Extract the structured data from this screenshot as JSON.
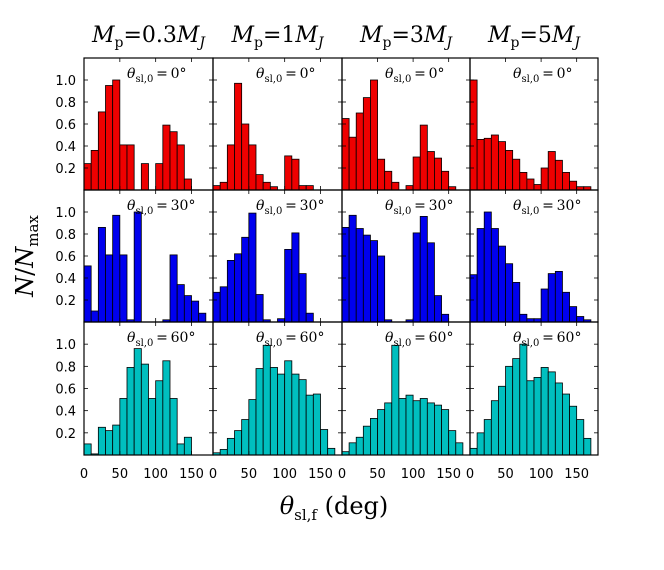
{
  "columns": [
    {
      "label": "0.3"
    },
    {
      "label": "1"
    },
    {
      "label": "3"
    },
    {
      "label": "5"
    }
  ],
  "rows": [
    {
      "theta0": "0",
      "color": "#ee0000"
    },
    {
      "theta0": "30",
      "color": "#0000ee"
    },
    {
      "theta0": "60",
      "color": "#00bfbf"
    }
  ],
  "ylabel": "N/N_max",
  "xlabel": "θ_sl,f (deg)",
  "chart_data": {
    "type": "bar",
    "layout": "3x4 grid of histograms (rows: initial θ_sl,0; columns: planet mass M_p)",
    "bin_width_deg": 10,
    "x_bin_centers": [
      5,
      15,
      25,
      35,
      45,
      55,
      65,
      75,
      85,
      95,
      105,
      115,
      125,
      135,
      145,
      155,
      165,
      175
    ],
    "xlim": [
      0,
      180
    ],
    "ylim": [
      0,
      1.2
    ],
    "x_ticks": [
      0,
      50,
      100,
      150
    ],
    "y_ticks": [
      0.2,
      0.4,
      0.6,
      0.8,
      1.0
    ],
    "panels": [
      [
        {
          "values": [
            0.24,
            0.36,
            0.71,
            0.95,
            1.0,
            0.41,
            0.41,
            0,
            0.24,
            0,
            0.24,
            0.59,
            0.53,
            0.41,
            0.1,
            0,
            0,
            0
          ]
        },
        {
          "values": [
            0.04,
            0.07,
            0.41,
            0.97,
            0.6,
            0.41,
            0.14,
            0.07,
            0.03,
            0,
            0.31,
            0.28,
            0.04,
            0.04,
            0,
            0,
            0,
            0
          ]
        },
        {
          "values": [
            0.65,
            0.48,
            0.7,
            0.84,
            1.0,
            0.28,
            0.17,
            0.07,
            0,
            0.04,
            0.3,
            0.59,
            0.35,
            0.29,
            0.17,
            0.03,
            0,
            0
          ]
        },
        {
          "values": [
            1.0,
            0.46,
            0.47,
            0.5,
            0.44,
            0.36,
            0.28,
            0.16,
            0.1,
            0.05,
            0.2,
            0.35,
            0.27,
            0.16,
            0.08,
            0.03,
            0.03,
            0
          ]
        }
      ],
      [
        {
          "values": [
            0.51,
            0.1,
            0.86,
            0.61,
            0.97,
            0.61,
            0.02,
            1.0,
            0,
            0,
            0,
            0.02,
            0.61,
            0.34,
            0.24,
            0.19,
            0.08,
            0
          ]
        },
        {
          "values": [
            0.27,
            0.32,
            0.56,
            0.62,
            0.77,
            0.99,
            0.25,
            0.02,
            0,
            0.03,
            0.66,
            0.81,
            0.44,
            0.08,
            0,
            0,
            0,
            0
          ]
        },
        {
          "values": [
            0.86,
            0.97,
            0.85,
            0.79,
            0.74,
            0.6,
            0.02,
            0,
            0,
            0.02,
            0.81,
            0.96,
            0.72,
            0.24,
            0.07,
            0,
            0,
            0
          ]
        },
        {
          "values": [
            0.43,
            0.85,
            1.0,
            0.85,
            0.69,
            0.53,
            0.36,
            0.07,
            0.03,
            0.03,
            0.3,
            0.44,
            0.46,
            0.27,
            0.14,
            0.05,
            0.02,
            0
          ]
        }
      ],
      [
        {
          "values": [
            0.1,
            0.01,
            0.25,
            0.22,
            0.27,
            0.51,
            0.79,
            0.96,
            0.82,
            0.51,
            0.67,
            0.85,
            0.51,
            0.1,
            0.16,
            0,
            0,
            0
          ]
        },
        {
          "values": [
            0.02,
            0.05,
            0.15,
            0.22,
            0.32,
            0.5,
            0.78,
            0.99,
            0.79,
            0.73,
            0.85,
            0.73,
            0.68,
            0.54,
            0.55,
            0.23,
            0.06,
            0
          ]
        },
        {
          "values": [
            0.03,
            0.11,
            0.16,
            0.26,
            0.33,
            0.41,
            0.47,
            0.99,
            0.51,
            0.54,
            0.49,
            0.51,
            0.47,
            0.45,
            0.41,
            0.22,
            0.11,
            0
          ]
        },
        {
          "values": [
            0.06,
            0.2,
            0.32,
            0.49,
            0.62,
            0.8,
            0.87,
            1.0,
            0.67,
            0.7,
            0.79,
            0.75,
            0.65,
            0.55,
            0.44,
            0.32,
            0.15,
            0
          ]
        }
      ]
    ]
  }
}
